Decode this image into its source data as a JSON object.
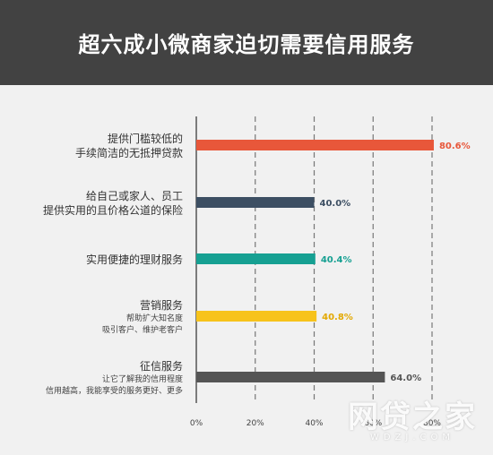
{
  "header": {
    "title": "超六成小微商家迫切需要信用服务"
  },
  "chart_data": {
    "type": "bar",
    "orientation": "horizontal",
    "title": "超六成小微商家迫切需要信用服务",
    "grid": true,
    "xlim": [
      0,
      80
    ],
    "ticks": [
      0,
      20,
      40,
      60,
      80
    ],
    "tick_labels": [
      "0%",
      "20%",
      "40%",
      "60%",
      "80%"
    ],
    "categories": [
      {
        "main": "提供门槛较低的",
        "sub": "",
        "extra": "手续简洁的无抵押贷款",
        "value": 80.6,
        "value_label": "80.6%",
        "color": "#e8573a"
      },
      {
        "main": "给自己或家人、员工",
        "sub": "",
        "extra": "提供实用的且价格公道的保险",
        "value": 40.0,
        "value_label": "40.0%",
        "color": "#3d4f63"
      },
      {
        "main": "实用便捷的理财服务",
        "sub": "",
        "extra": "",
        "value": 40.4,
        "value_label": "40.4%",
        "color": "#16a092"
      },
      {
        "main": "营销服务",
        "sub": "帮助扩大知名度",
        "extra": "吸引客户、维护老客户",
        "value": 40.8,
        "value_label": "40.8%",
        "color": "#f7c31b"
      },
      {
        "main": "征信服务",
        "sub": "让它了解我的信用程度",
        "extra": "信用越高，我能享受的服务更好、更多",
        "value": 64.0,
        "value_label": "64.0%",
        "color": "#555555"
      }
    ]
  },
  "watermark": {
    "main": "网贷之家",
    "sub": "WDZJ.COM"
  }
}
